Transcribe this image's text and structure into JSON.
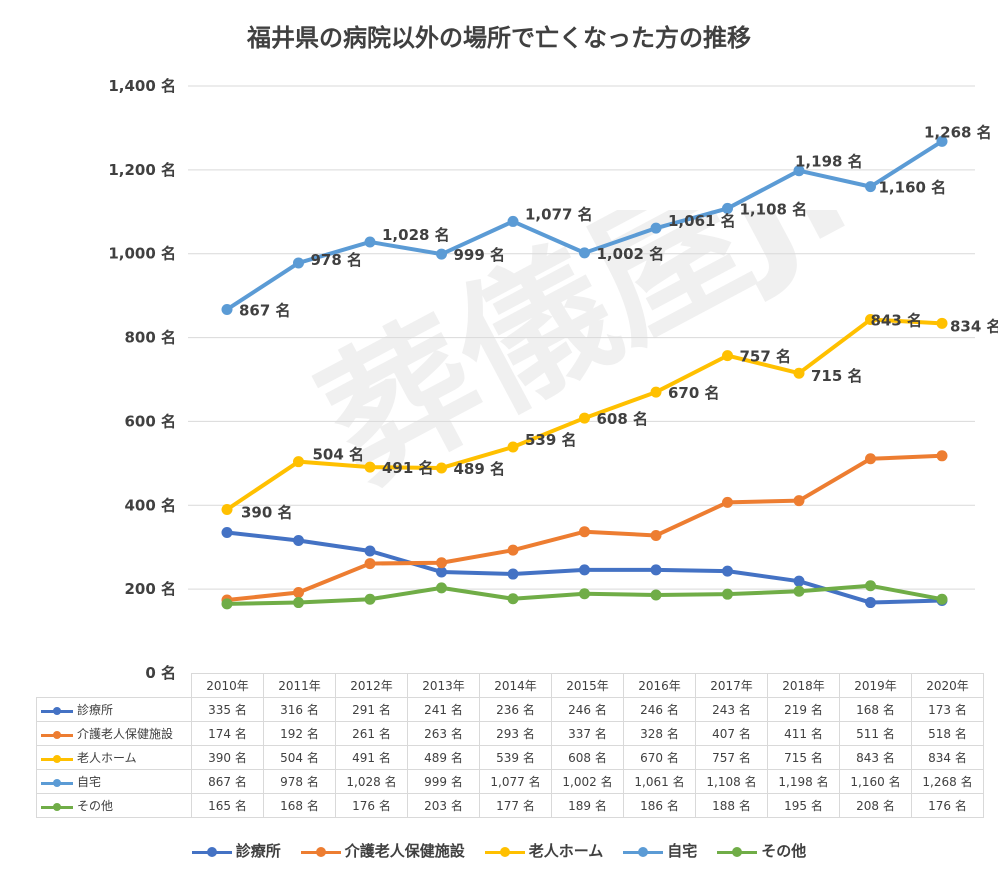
{
  "chart_data": {
    "type": "line",
    "title": "福井県の病院以外の場所で亡くなった方の推移",
    "categories": [
      "2010年",
      "2011年",
      "2012年",
      "2013年",
      "2014年",
      "2015年",
      "2016年",
      "2017年",
      "2018年",
      "2019年",
      "2020年"
    ],
    "ylim": [
      0,
      1400
    ],
    "yticks": [
      0,
      200,
      400,
      600,
      800,
      1000,
      1200,
      1400
    ],
    "ytick_labels": [
      "0 名",
      "200 名",
      "400 名",
      "600 名",
      "800 名",
      "1,000 名",
      "1,200 名",
      "1,400 名"
    ],
    "grid": true,
    "legend_position": "bottom",
    "watermark": "葬儀屋JP",
    "series": [
      {
        "name": "診療所",
        "color": "#4472c4",
        "values": [
          335,
          316,
          291,
          241,
          236,
          246,
          246,
          243,
          219,
          168,
          173
        ],
        "labels": [
          "335 名",
          "316 名",
          "291 名",
          "241 名",
          "236 名",
          "246 名",
          "246 名",
          "243 名",
          "219 名",
          "168 名",
          "173 名"
        ],
        "show_point_labels": false
      },
      {
        "name": "介護老人保健施設",
        "color": "#ed7d31",
        "values": [
          174,
          192,
          261,
          263,
          293,
          337,
          328,
          407,
          411,
          511,
          518
        ],
        "labels": [
          "174 名",
          "192 名",
          "261 名",
          "263 名",
          "293 名",
          "337 名",
          "328 名",
          "407 名",
          "411 名",
          "511 名",
          "518 名"
        ],
        "show_point_labels": false
      },
      {
        "name": "老人ホーム",
        "color": "#ffc000",
        "values": [
          390,
          504,
          491,
          489,
          539,
          608,
          670,
          757,
          715,
          843,
          834
        ],
        "labels": [
          "390 名",
          "504 名",
          "491 名",
          "489 名",
          "539 名",
          "608 名",
          "670 名",
          "757 名",
          "715 名",
          "843 名",
          "834 名"
        ],
        "show_point_labels": true
      },
      {
        "name": "自宅",
        "color": "#5b9bd5",
        "values": [
          867,
          978,
          1028,
          999,
          1077,
          1002,
          1061,
          1108,
          1198,
          1160,
          1268
        ],
        "labels": [
          "867 名",
          "978 名",
          "1,028 名",
          "999 名",
          "1,077 名",
          "1,002 名",
          "1,061 名",
          "1,108 名",
          "1,198 名",
          "1,160 名",
          "1,268 名"
        ],
        "show_point_labels": true
      },
      {
        "name": "その他",
        "color": "#70ad47",
        "values": [
          165,
          168,
          176,
          203,
          177,
          189,
          186,
          188,
          195,
          208,
          176
        ],
        "labels": [
          "165 名",
          "168 名",
          "176 名",
          "203 名",
          "177 名",
          "189 名",
          "186 名",
          "188 名",
          "195 名",
          "208 名",
          "176 名"
        ],
        "show_point_labels": false
      }
    ]
  }
}
